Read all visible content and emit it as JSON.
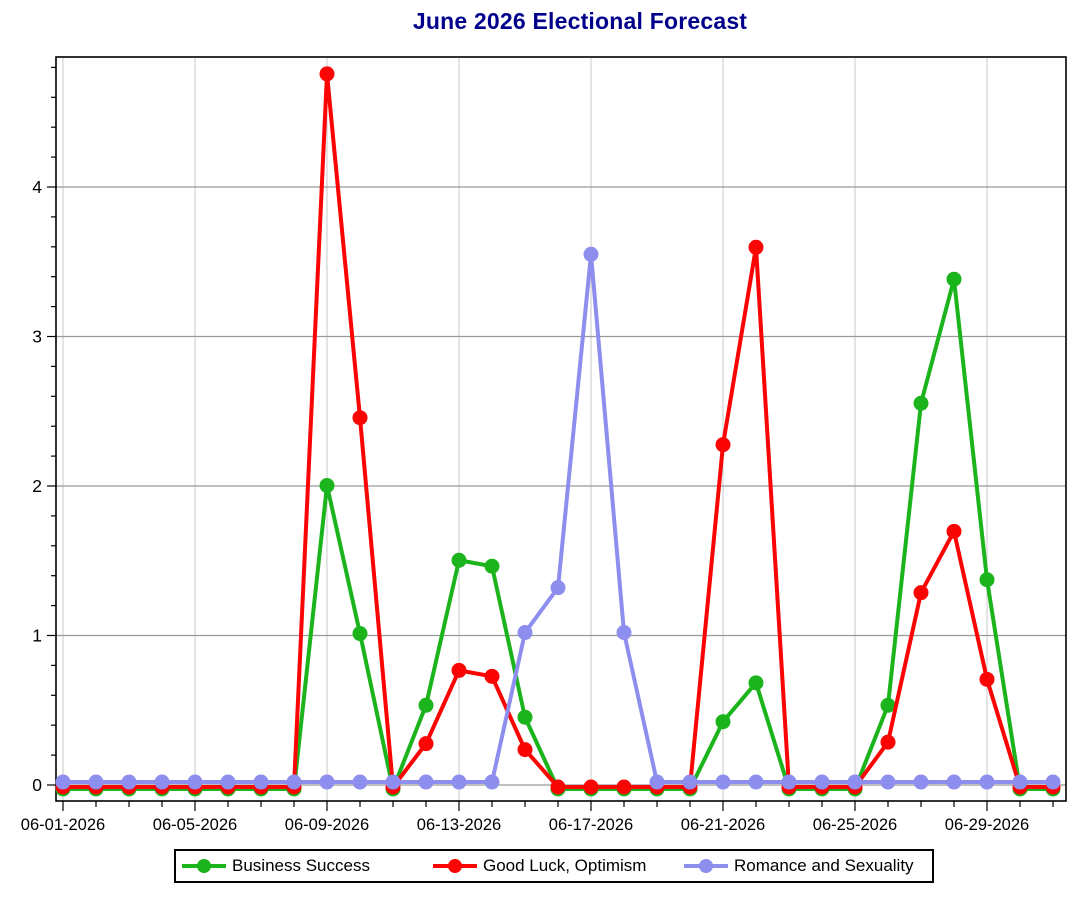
{
  "chart_data": {
    "type": "line",
    "title": "June 2026 Electional Forecast",
    "xlabel": "",
    "ylabel": "",
    "grid": true,
    "legend_position": "bottom",
    "ylim": [
      -0.1,
      4.87
    ],
    "y_major_ticks": [
      0,
      1,
      2,
      3,
      4
    ],
    "y_minor_step": 0.2,
    "y_minor_max": 4.8,
    "x": [
      "06-01-2026",
      "06-02-2026",
      "06-03-2026",
      "06-04-2026",
      "06-05-2026",
      "06-06-2026",
      "06-07-2026",
      "06-08-2026",
      "06-09-2026",
      "06-10-2026",
      "06-11-2026",
      "06-12-2026",
      "06-13-2026",
      "06-14-2026",
      "06-15-2026",
      "06-16-2026",
      "06-17-2026",
      "06-18-2026",
      "06-19-2026",
      "06-20-2026",
      "06-21-2026",
      "06-22-2026",
      "06-23-2026",
      "06-24-2026",
      "06-25-2026",
      "06-26-2026",
      "06-27-2026",
      "06-28-2026",
      "06-29-2026",
      "06-30-2026",
      "07-01-2026"
    ],
    "x_tick_label_indices": [
      0,
      4,
      8,
      12,
      16,
      20,
      24,
      28
    ],
    "x_tick_labels": [
      "06-01-2026",
      "06-05-2026",
      "06-09-2026",
      "06-13-2026",
      "06-17-2026",
      "06-21-2026",
      "06-25-2026",
      "06-29-2026"
    ],
    "series": [
      {
        "name": "Business Success",
        "color": "#1cb41c",
        "values": [
          0,
          0,
          0,
          0,
          0,
          0,
          0,
          0,
          2.03,
          1.04,
          0,
          0.56,
          1.53,
          1.49,
          0.48,
          0,
          0,
          0,
          0,
          0,
          0.45,
          0.71,
          0,
          0,
          0,
          0.56,
          2.58,
          3.41,
          1.4,
          0,
          0
        ]
      },
      {
        "name": "Good Luck, Optimism",
        "color": "#fa0404",
        "values": [
          0,
          0,
          0,
          0,
          0,
          0,
          0,
          0,
          4.77,
          2.47,
          0,
          0.29,
          0.78,
          0.74,
          0.25,
          0,
          0,
          0,
          0,
          0,
          2.29,
          3.61,
          0,
          0,
          0,
          0.3,
          1.3,
          1.71,
          0.72,
          0,
          0
        ]
      },
      {
        "name": "Romance and Sexuality",
        "color": "#8e8eef",
        "values": [
          0.02,
          0.02,
          0.02,
          0.02,
          0.02,
          0.02,
          0.02,
          0.02,
          0.02,
          0.02,
          0.02,
          0.02,
          0.02,
          0.02,
          1.02,
          1.32,
          3.55,
          1.02,
          0.02,
          0.02,
          0.02,
          0.02,
          0.02,
          0.02,
          0.02,
          0.02,
          0.02,
          0.02,
          0.02,
          0.02,
          0.02
        ]
      }
    ]
  },
  "colors": {
    "title": "#00008b",
    "h_gridline": "#999999",
    "v_gridline": "#c9c9c9",
    "axis": "#000000",
    "background": "#ffffff"
  }
}
